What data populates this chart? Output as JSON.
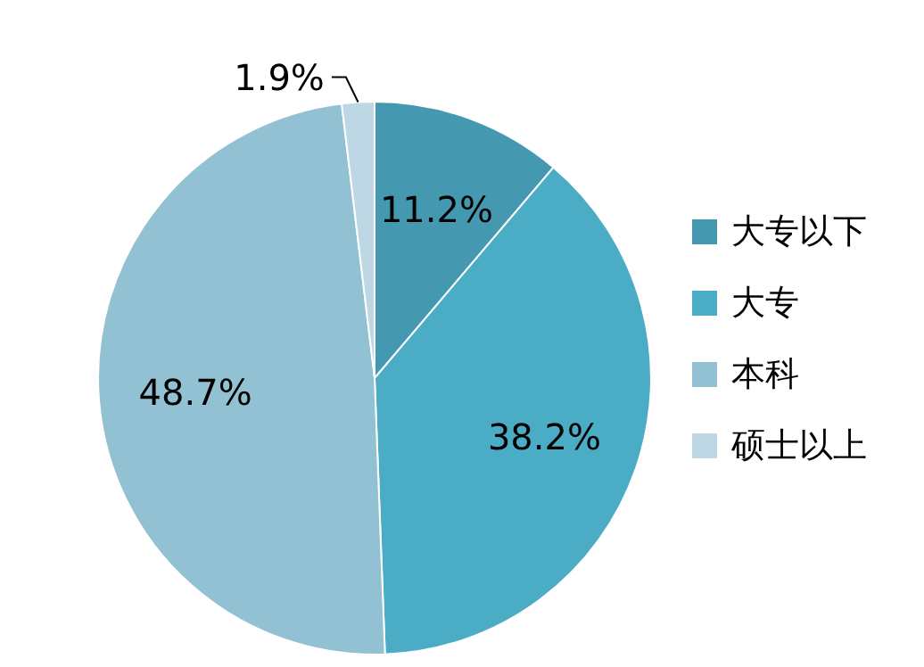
{
  "chart_data": {
    "type": "pie",
    "categories": [
      "大专以下",
      "大专",
      "本科",
      "硕士以上"
    ],
    "values": [
      11.2,
      38.2,
      48.7,
      1.9
    ],
    "colors": [
      "#4499b0",
      "#4bacc6",
      "#93c1d4",
      "#bdd7e4"
    ],
    "value_labels": [
      "11.2%",
      "38.2%",
      "48.7%",
      "1.9%"
    ],
    "legend": "right"
  }
}
